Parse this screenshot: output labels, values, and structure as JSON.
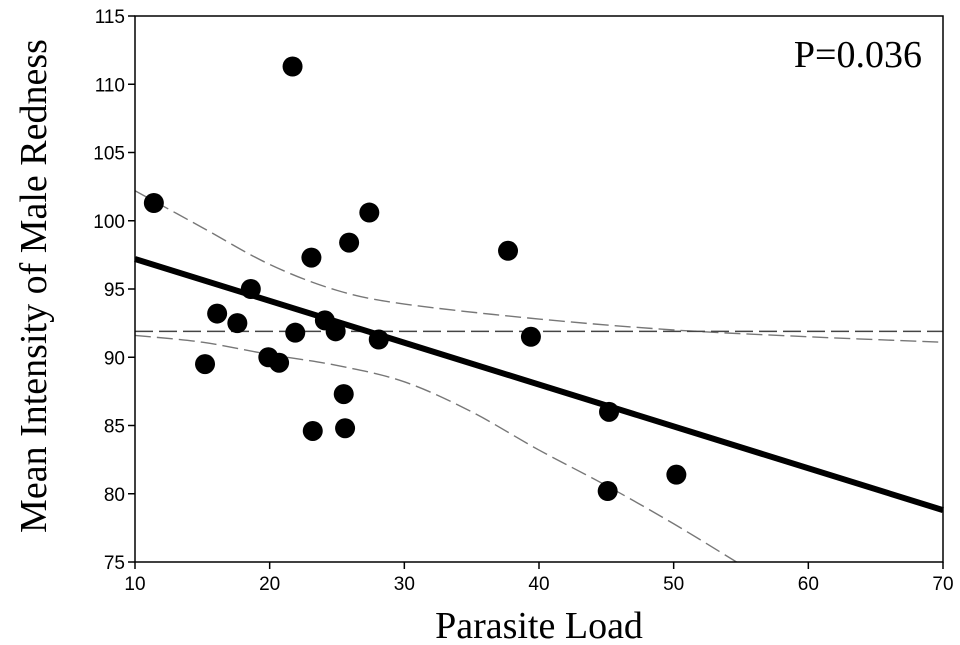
{
  "chart_data": {
    "type": "scatter",
    "title": "",
    "xlabel": "Parasite Load",
    "ylabel": "Mean Intensity of Male Redness",
    "xlim": [
      10,
      70
    ],
    "ylim": [
      75,
      115
    ],
    "xticks": [
      10,
      20,
      30,
      40,
      50,
      60,
      70
    ],
    "yticks": [
      75,
      80,
      85,
      90,
      95,
      100,
      105,
      110,
      115
    ],
    "grid": false,
    "annotation": "P=0.036",
    "points": [
      {
        "x": 11.4,
        "y": 101.3
      },
      {
        "x": 15.2,
        "y": 89.5
      },
      {
        "x": 16.1,
        "y": 93.2
      },
      {
        "x": 17.6,
        "y": 92.5
      },
      {
        "x": 18.6,
        "y": 95.0
      },
      {
        "x": 19.9,
        "y": 90.0
      },
      {
        "x": 20.7,
        "y": 89.6
      },
      {
        "x": 21.7,
        "y": 111.3
      },
      {
        "x": 21.9,
        "y": 91.8
      },
      {
        "x": 23.1,
        "y": 97.3
      },
      {
        "x": 23.2,
        "y": 84.6
      },
      {
        "x": 24.1,
        "y": 92.7
      },
      {
        "x": 24.9,
        "y": 91.9
      },
      {
        "x": 25.5,
        "y": 87.3
      },
      {
        "x": 25.6,
        "y": 84.8
      },
      {
        "x": 25.9,
        "y": 98.4
      },
      {
        "x": 27.4,
        "y": 100.6
      },
      {
        "x": 28.1,
        "y": 91.3
      },
      {
        "x": 37.7,
        "y": 97.8
      },
      {
        "x": 39.4,
        "y": 91.5
      },
      {
        "x": 45.2,
        "y": 86.0
      },
      {
        "x": 45.1,
        "y": 80.2
      },
      {
        "x": 50.2,
        "y": 81.4
      }
    ],
    "fit_line": {
      "x": [
        10,
        70
      ],
      "y": [
        97.2,
        78.8
      ]
    },
    "mean_line": {
      "y": 91.9
    },
    "ci_upper": {
      "x": [
        10,
        15,
        20,
        25,
        30,
        40,
        50,
        60,
        70
      ],
      "y": [
        102.2,
        99.5,
        96.8,
        94.9,
        93.9,
        92.8,
        92.0,
        91.5,
        91.1
      ]
    },
    "ci_lower": {
      "x": [
        10,
        15,
        20,
        25,
        30,
        35,
        40,
        45,
        50,
        55
      ],
      "y": [
        91.6,
        91.1,
        90.2,
        89.4,
        88.2,
        86.0,
        83.2,
        80.6,
        77.8,
        74.8
      ]
    }
  }
}
